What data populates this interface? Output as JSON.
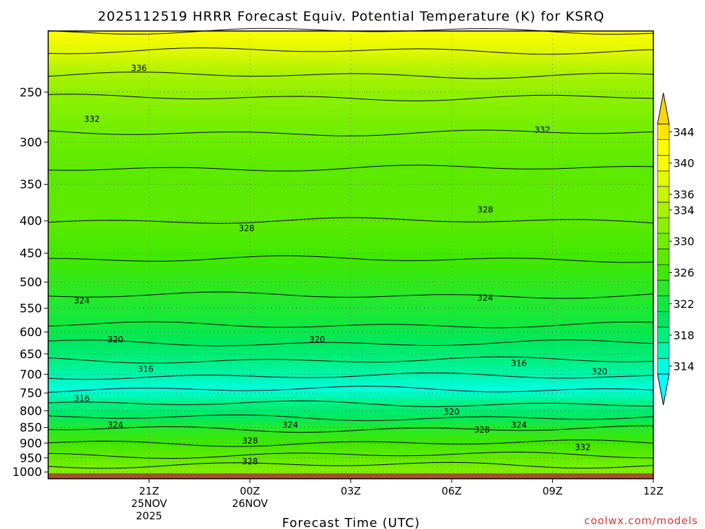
{
  "chart_data": {
    "type": "heatmap",
    "title": "2025112519 HRRR Forecast Equiv. Potential Temperature (K) for KSRQ",
    "xlabel": "Forecast Time (UTC)",
    "ylabel": "",
    "watermark": "coolwx.com/models",
    "y_axis": {
      "scale": "log",
      "inverted": true,
      "range": [
        200,
        1025
      ],
      "ticks": [
        250,
        300,
        350,
        400,
        450,
        500,
        550,
        600,
        650,
        700,
        750,
        800,
        850,
        900,
        950,
        1000
      ]
    },
    "x_axis": {
      "range_hours": [
        -1,
        17
      ],
      "ticks": [
        {
          "hour": 2,
          "lines": [
            "21Z",
            "25NOV",
            "2025"
          ]
        },
        {
          "hour": 5,
          "lines": [
            "00Z",
            "26NOV"
          ]
        },
        {
          "hour": 8,
          "lines": [
            "03Z"
          ]
        },
        {
          "hour": 11,
          "lines": [
            "06Z"
          ]
        },
        {
          "hour": 14,
          "lines": [
            "09Z"
          ]
        },
        {
          "hour": 17,
          "lines": [
            "12Z"
          ]
        }
      ]
    },
    "colorbar": {
      "levels": [
        314,
        318,
        322,
        326,
        330,
        334,
        336,
        340,
        344
      ],
      "bands": [
        {
          "value": 314,
          "color": "#00ffe0"
        },
        {
          "value": 316,
          "color": "#00f5b0"
        },
        {
          "value": 318,
          "color": "#00f080"
        },
        {
          "value": 320,
          "color": "#00e860"
        },
        {
          "value": 322,
          "color": "#10e840"
        },
        {
          "value": 324,
          "color": "#28e828"
        },
        {
          "value": 326,
          "color": "#40e800"
        },
        {
          "value": 328,
          "color": "#5cea00"
        },
        {
          "value": 330,
          "color": "#70ee00"
        },
        {
          "value": 332,
          "color": "#8cf000"
        },
        {
          "value": 334,
          "color": "#a8f200"
        },
        {
          "value": 336,
          "color": "#c8f400"
        },
        {
          "value": 338,
          "color": "#e0f800"
        },
        {
          "value": 340,
          "color": "#f8fc00"
        },
        {
          "value": 342,
          "color": "#fffc00"
        },
        {
          "value": 344,
          "color": "#ffe600"
        }
      ],
      "extend_low_color": "#00ffff",
      "extend_high_color": "#ffd700"
    },
    "profile": [
      {
        "p": 200,
        "value": 343
      },
      {
        "p": 215,
        "value": 338
      },
      {
        "p": 235,
        "value": 335
      },
      {
        "p": 255,
        "value": 333
      },
      {
        "p": 290,
        "value": 331
      },
      {
        "p": 330,
        "value": 329
      },
      {
        "p": 400,
        "value": 328
      },
      {
        "p": 460,
        "value": 326
      },
      {
        "p": 525,
        "value": 324
      },
      {
        "p": 585,
        "value": 322
      },
      {
        "p": 625,
        "value": 320
      },
      {
        "p": 665,
        "value": 318
      },
      {
        "p": 705,
        "value": 316
      },
      {
        "p": 740,
        "value": 315
      },
      {
        "p": 780,
        "value": 318
      },
      {
        "p": 820,
        "value": 321
      },
      {
        "p": 855,
        "value": 324
      },
      {
        "p": 900,
        "value": 326
      },
      {
        "p": 940,
        "value": 328
      },
      {
        "p": 975,
        "value": 331
      },
      {
        "p": 1010,
        "value": 333
      }
    ],
    "ground": {
      "p_from": 1005,
      "color": "#a0522d"
    },
    "contour_labels": [
      {
        "text": "336",
        "hour": 1.7,
        "p": 229
      },
      {
        "text": "332",
        "hour": 0.3,
        "p": 276
      },
      {
        "text": "332",
        "hour": 13.7,
        "p": 287
      },
      {
        "text": "328",
        "hour": 4.9,
        "p": 411
      },
      {
        "text": "328",
        "hour": 12.0,
        "p": 384
      },
      {
        "text": "324",
        "hour": 0.0,
        "p": 535
      },
      {
        "text": "324",
        "hour": 12.0,
        "p": 530
      },
      {
        "text": "320",
        "hour": 1.0,
        "p": 617
      },
      {
        "text": "320",
        "hour": 7.0,
        "p": 617
      },
      {
        "text": "316",
        "hour": 1.9,
        "p": 687
      },
      {
        "text": "316",
        "hour": 13.0,
        "p": 673
      },
      {
        "text": "320",
        "hour": 15.4,
        "p": 693
      },
      {
        "text": "316",
        "hour": -0.0,
        "p": 765
      },
      {
        "text": "320",
        "hour": 11.0,
        "p": 803
      },
      {
        "text": "324",
        "hour": 1.0,
        "p": 843
      },
      {
        "text": "324",
        "hour": 6.2,
        "p": 843
      },
      {
        "text": "328",
        "hour": 11.9,
        "p": 857
      },
      {
        "text": "324",
        "hour": 13.0,
        "p": 843
      },
      {
        "text": "328",
        "hour": 5.0,
        "p": 893
      },
      {
        "text": "332",
        "hour": 14.9,
        "p": 914
      },
      {
        "text": "328",
        "hour": 5.0,
        "p": 962
      }
    ]
  }
}
